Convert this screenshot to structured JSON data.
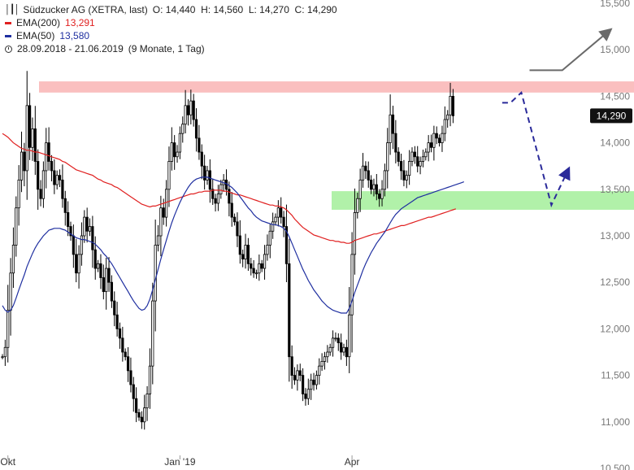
{
  "header": {
    "title": "Südzucker AG (XETRA, last)",
    "ohlc": "O: 14,440  H: 14,560  L: 14,270  C: 14,290",
    "ema200_label": "EMA(200)",
    "ema200_value": "13,291",
    "ema50_label": "EMA(50)",
    "ema50_value": "13,580",
    "period": "28.09.2018 - 21.06.2019",
    "interval": "(9 Monate, 1 Tag)"
  },
  "colors": {
    "candle": "#000000",
    "ema200": "#e02020",
    "ema50": "#1f2fa0",
    "resistance_zone": "#f9b8b8",
    "support_zone": "#a8f0a0",
    "forecast_up_arrow": "#6a6a6a",
    "forecast_down_path": "#2a2a9a",
    "price_tag_bg": "#111111",
    "axis_text": "#777777"
  },
  "chart_data": {
    "type": "candlestick",
    "y_axis": {
      "ticks": [
        "15,500",
        "15,000",
        "14,500",
        "14,000",
        "13,500",
        "13,000",
        "12,500",
        "12,000",
        "11,500",
        "11,000",
        "10,500"
      ],
      "tick_values": [
        15500,
        15000,
        14500,
        14000,
        13500,
        13000,
        12500,
        12000,
        11500,
        11000,
        10500
      ],
      "range": [
        10500,
        15500
      ]
    },
    "x_axis": {
      "labels": [
        "Okt",
        "Jan '19",
        "Apr"
      ],
      "label_index": [
        2,
        65,
        128
      ]
    },
    "last_price_tag": "14,290",
    "last_price": 14290,
    "zones": [
      {
        "name": "resistance",
        "low": 14540,
        "high": 14660
      },
      {
        "name": "support",
        "low": 13280,
        "high": 13480
      }
    ],
    "forecast_up": [
      [
        193,
        14780
      ],
      [
        205,
        14780
      ],
      [
        222,
        15200
      ]
    ],
    "forecast_down": [
      [
        183,
        14430
      ],
      [
        186,
        14430
      ],
      [
        190,
        14540
      ],
      [
        201,
        13330
      ],
      [
        207,
        13700
      ]
    ],
    "close": [
      11700,
      11800,
      12200,
      12600,
      12900,
      13300,
      13600,
      13900,
      13700,
      14400,
      13950,
      14150,
      13800,
      13500,
      13400,
      13700,
      14000,
      13800,
      13700,
      13550,
      13650,
      13600,
      13400,
      13250,
      13100,
      13000,
      12800,
      12600,
      12800,
      13000,
      13200,
      13050,
      13100,
      12850,
      12650,
      12700,
      12550,
      12400,
      12650,
      12500,
      12300,
      12150,
      12000,
      11900,
      11750,
      11700,
      11550,
      11400,
      11250,
      11100,
      11050,
      11000,
      11150,
      11300,
      11600,
      12300,
      12900,
      13000,
      13300,
      13200,
      13500,
      13800,
      14000,
      13850,
      13900,
      14100,
      14200,
      14400,
      14300,
      14450,
      14250,
      14050,
      13900,
      13750,
      13600,
      13700,
      13500,
      13400,
      13350,
      13450,
      13550,
      13600,
      13500,
      13350,
      13200,
      13150,
      13000,
      12800,
      12750,
      12900,
      12700,
      12650,
      12600,
      12600,
      12700,
      12650,
      12800,
      12900,
      13050,
      13150,
      13200,
      13300,
      13200,
      13100,
      12700,
      11700,
      11500,
      11450,
      11550,
      11500,
      11300,
      11250,
      11350,
      11450,
      11400,
      11500,
      11600,
      11650,
      11700,
      11750,
      11800,
      11900,
      11900,
      11850,
      11750,
      11800,
      11700,
      12150,
      12800,
      13250,
      13400,
      13600,
      13750,
      13700,
      13600,
      13500,
      13550,
      13450,
      13400,
      13500,
      13700,
      14000,
      14300,
      14100,
      13900,
      13800,
      13700,
      13600,
      13650,
      13800,
      13900,
      13850,
      13750,
      13800,
      13850,
      13900,
      14000,
      13950,
      14100,
      14050,
      14000,
      14100,
      14250,
      14300,
      14500,
      14290
    ],
    "ema200": [
      14100,
      14080,
      14060,
      14030,
      14000,
      13980,
      13960,
      13940,
      13930,
      13920,
      13920,
      13910,
      13900,
      13900,
      13890,
      13880,
      13870,
      13860,
      13850,
      13840,
      13830,
      13820,
      13800,
      13790,
      13770,
      13750,
      13730,
      13710,
      13700,
      13690,
      13680,
      13670,
      13660,
      13650,
      13630,
      13610,
      13600,
      13580,
      13570,
      13560,
      13550,
      13530,
      13520,
      13500,
      13480,
      13460,
      13440,
      13420,
      13400,
      13380,
      13360,
      13340,
      13330,
      13320,
      13310,
      13320,
      13320,
      13330,
      13340,
      13350,
      13360,
      13370,
      13380,
      13390,
      13400,
      13410,
      13420,
      13430,
      13440,
      13450,
      13450,
      13460,
      13470,
      13470,
      13480,
      13480,
      13480,
      13490,
      13490,
      13490,
      13490,
      13480,
      13480,
      13470,
      13460,
      13450,
      13440,
      13440,
      13430,
      13420,
      13410,
      13400,
      13390,
      13380,
      13370,
      13360,
      13350,
      13340,
      13330,
      13330,
      13320,
      13320,
      13310,
      13300,
      13280,
      13250,
      13220,
      13180,
      13150,
      13120,
      13090,
      13070,
      13050,
      13030,
      13010,
      13000,
      12990,
      12980,
      12970,
      12960,
      12950,
      12950,
      12940,
      12940,
      12930,
      12930,
      12920,
      12920,
      12930,
      12950,
      12960,
      12970,
      12980,
      12990,
      13000,
      13010,
      13020,
      13020,
      13030,
      13040,
      13050,
      13060,
      13070,
      13080,
      13090,
      13100,
      13110,
      13110,
      13120,
      13130,
      13140,
      13150,
      13160,
      13170,
      13180,
      13190,
      13200,
      13200,
      13210,
      13220,
      13230,
      13240,
      13250,
      13260,
      13270,
      13280,
      13290
    ],
    "ema50": [
      12250,
      12200,
      12180,
      12200,
      12250,
      12330,
      12420,
      12500,
      12580,
      12670,
      12740,
      12810,
      12870,
      12920,
      12960,
      13000,
      13030,
      13060,
      13070,
      13080,
      13080,
      13080,
      13070,
      13060,
      13040,
      13020,
      13000,
      12980,
      12970,
      12960,
      12960,
      12950,
      12940,
      12930,
      12910,
      12880,
      12850,
      12810,
      12780,
      12740,
      12700,
      12650,
      12600,
      12550,
      12500,
      12450,
      12400,
      12350,
      12300,
      12260,
      12220,
      12200,
      12210,
      12250,
      12320,
      12420,
      12530,
      12640,
      12750,
      12850,
      12950,
      13050,
      13140,
      13220,
      13290,
      13360,
      13420,
      13470,
      13520,
      13560,
      13590,
      13610,
      13620,
      13630,
      13630,
      13630,
      13620,
      13610,
      13600,
      13590,
      13580,
      13570,
      13560,
      13540,
      13520,
      13490,
      13460,
      13420,
      13380,
      13340,
      13300,
      13270,
      13230,
      13200,
      13180,
      13160,
      13150,
      13140,
      13130,
      13120,
      13120,
      13110,
      13100,
      13080,
      13050,
      12990,
      12920,
      12850,
      12780,
      12710,
      12640,
      12580,
      12520,
      12470,
      12420,
      12380,
      12340,
      12300,
      12270,
      12240,
      12220,
      12200,
      12190,
      12180,
      12170,
      12170,
      12170,
      12220,
      12300,
      12390,
      12470,
      12550,
      12630,
      12700,
      12760,
      12820,
      12870,
      12920,
      12960,
      13000,
      13040,
      13090,
      13140,
      13190,
      13230,
      13260,
      13290,
      13310,
      13330,
      13350,
      13370,
      13390,
      13410,
      13420,
      13430,
      13440,
      13450,
      13460,
      13470,
      13480,
      13490,
      13500,
      13510,
      13520,
      13530,
      13540,
      13550,
      13560,
      13570,
      13580
    ]
  }
}
